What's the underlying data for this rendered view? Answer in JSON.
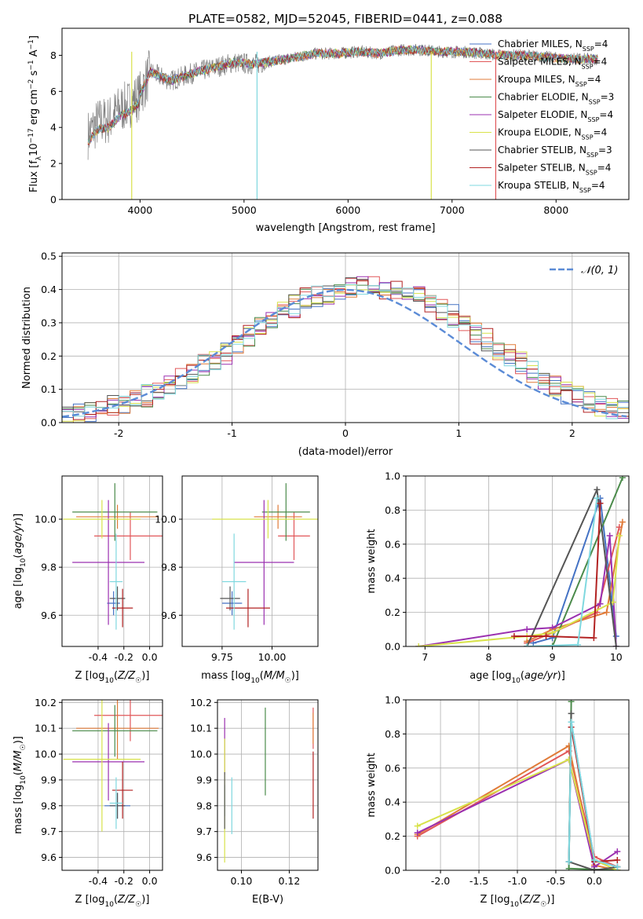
{
  "figure_title": "PLATE=0582, MJD=52045, FIBERID=0441, z=0.088",
  "colors": {
    "Chabrier MILES": "#4472c4",
    "Salpeter MILES": "#e15759",
    "Kroupa MILES": "#e07b39",
    "Chabrier ELODIE": "#4b8b4b",
    "Salpeter ELODIE": "#9b30b0",
    "Kroupa ELODIE": "#d8e24a",
    "Chabrier STELIB": "#555555",
    "Salpeter STELIB": "#b22222",
    "Kroupa STELIB": "#7fd8df"
  },
  "chart_data": [
    {
      "type": "line",
      "name": "spectrum",
      "xlabel": "wavelength [Angstrom, rest frame]",
      "ylabel": "Flux [f_λ 10^-17 erg cm^-2 s^-1 A^-1]",
      "xlim": [
        3250,
        8700
      ],
      "ylim": [
        0,
        9.5
      ],
      "xticks": [
        4000,
        5000,
        6000,
        7000,
        8000
      ],
      "yticks": [
        0,
        2,
        4,
        6,
        8
      ],
      "grid": false,
      "legend_position": "right",
      "data_continuum": {
        "x": [
          3500,
          3600,
          3700,
          3800,
          3900,
          4000,
          4100,
          4200,
          4300,
          4500,
          4700,
          4900,
          5100,
          5300,
          5500,
          5700,
          5900,
          6100,
          6300,
          6500,
          6700,
          6900,
          7100,
          7300,
          7500,
          7700,
          7900,
          8100,
          8300
        ],
        "y": [
          3.6,
          4.3,
          4.4,
          5.0,
          5.3,
          5.8,
          7.1,
          6.8,
          6.6,
          7.0,
          7.3,
          7.6,
          7.5,
          7.7,
          7.9,
          8.1,
          8.1,
          8.2,
          8.1,
          8.3,
          8.3,
          8.2,
          8.2,
          8.1,
          8.0,
          8.0,
          7.9,
          7.8,
          7.8
        ]
      },
      "series": [
        {
          "name": "Chabrier MILES, N_SSP=4",
          "label_text": "Chabrier MILES, N",
          "sub": "SSP",
          "suffix": "=4"
        },
        {
          "name": "Salpeter MILES, N_SSP=4",
          "label_text": "Salpeter MILES, N",
          "sub": "SSP",
          "suffix": "=4"
        },
        {
          "name": "Kroupa MILES, N_SSP=4",
          "label_text": "Kroupa MILES, N",
          "sub": "SSP",
          "suffix": "=4"
        },
        {
          "name": "Chabrier ELODIE, N_SSP=3",
          "label_text": "Chabrier ELODIE, N",
          "sub": "SSP",
          "suffix": "=3"
        },
        {
          "name": "Salpeter ELODIE, N_SSP=4",
          "label_text": "Salpeter ELODIE, N",
          "sub": "SSP",
          "suffix": "=4"
        },
        {
          "name": "Kroupa ELODIE, N_SSP=4",
          "label_text": "Kroupa ELODIE, N",
          "sub": "SSP",
          "suffix": "=4"
        },
        {
          "name": "Chabrier STELIB, N_SSP=3",
          "label_text": "Chabrier STELIB, N",
          "sub": "SSP",
          "suffix": "=3"
        },
        {
          "name": "Salpeter STELIB, N_SSP=4",
          "label_text": "Salpeter STELIB, N",
          "sub": "SSP",
          "suffix": "=4"
        },
        {
          "name": "Kroupa STELIB, N_SSP=4",
          "label_text": "Kroupa STELIB, N",
          "sub": "SSP",
          "suffix": "=4"
        }
      ]
    },
    {
      "type": "line",
      "name": "residual-histogram",
      "xlabel": "(data-model)/error",
      "ylabel": "Normed distribution",
      "xlim": [
        -2.5,
        2.5
      ],
      "ylim": [
        0,
        0.51
      ],
      "xticks": [
        -2,
        -1,
        0,
        1,
        2
      ],
      "yticks": [
        0.0,
        0.1,
        0.2,
        0.3,
        0.4,
        0.5
      ],
      "grid": true,
      "legend_position": "top-right",
      "legend": "𝒩(0, 1)",
      "bin_edges_start": -2.5,
      "bin_width": 0.1,
      "histogram_mean": [
        0.02,
        0.025,
        0.03,
        0.04,
        0.05,
        0.06,
        0.07,
        0.08,
        0.1,
        0.115,
        0.13,
        0.15,
        0.17,
        0.19,
        0.21,
        0.24,
        0.26,
        0.29,
        0.31,
        0.33,
        0.35,
        0.37,
        0.38,
        0.39,
        0.4,
        0.405,
        0.41,
        0.41,
        0.405,
        0.4,
        0.39,
        0.38,
        0.36,
        0.34,
        0.32,
        0.3,
        0.27,
        0.25,
        0.22,
        0.2,
        0.18,
        0.15,
        0.13,
        0.11,
        0.09,
        0.08,
        0.065,
        0.05,
        0.04,
        0.03
      ]
    },
    {
      "type": "scatter",
      "name": "age-vs-Z",
      "xlabel": "Z [log10(Z/Z☉)]",
      "ylabel": "age [log10(age/yr)]",
      "xlim": [
        -0.68,
        0.1
      ],
      "ylim": [
        9.47,
        10.18
      ],
      "xticks": [
        -0.4,
        -0.2,
        0.0
      ],
      "yticks": [
        9.6,
        9.8,
        10.0
      ],
      "points": [
        {
          "model": "Chabrier MILES",
          "x": -0.28,
          "xerr": 0.05,
          "y": 9.65,
          "yerr": 0.05
        },
        {
          "model": "Salpeter MILES",
          "x": -0.15,
          "xerr": 0.28,
          "y": 9.93,
          "yerr": 0.1
        },
        {
          "model": "Kroupa MILES",
          "x": -0.25,
          "xerr": 0.32,
          "y": 10.01,
          "yerr": 0.05
        },
        {
          "model": "Chabrier ELODIE",
          "x": -0.27,
          "xerr": 0.33,
          "y": 10.03,
          "yerr": 0.12
        },
        {
          "model": "Salpeter ELODIE",
          "x": -0.32,
          "xerr": 0.28,
          "y": 9.82,
          "yerr": 0.26
        },
        {
          "model": "Kroupa ELODIE",
          "x": -0.37,
          "xerr": 0.3,
          "y": 10.0,
          "yerr": 0.08
        },
        {
          "model": "Chabrier STELIB",
          "x": -0.25,
          "xerr": 0.06,
          "y": 9.67,
          "yerr": 0.05
        },
        {
          "model": "Salpeter STELIB",
          "x": -0.21,
          "xerr": 0.08,
          "y": 9.63,
          "yerr": 0.08
        },
        {
          "model": "Kroupa STELIB",
          "x": -0.26,
          "xerr": 0.05,
          "y": 9.74,
          "yerr": 0.2
        }
      ]
    },
    {
      "type": "scatter",
      "name": "age-vs-mass",
      "xlabel": "mass [log10(M/M☉)]",
      "ylabel": "",
      "xlim": [
        9.55,
        10.23
      ],
      "ylim": [
        9.47,
        10.18
      ],
      "xticks": [
        9.75,
        10.0
      ],
      "yticks": [
        9.6,
        9.8,
        10.0
      ],
      "points": [
        {
          "model": "Chabrier MILES",
          "x": 9.8,
          "xerr": 0.05,
          "y": 9.65,
          "yerr": 0.05
        },
        {
          "model": "Salpeter MILES",
          "x": 10.11,
          "xerr": 0.08,
          "y": 9.93,
          "yerr": 0.1
        },
        {
          "model": "Kroupa MILES",
          "x": 10.03,
          "xerr": 0.12,
          "y": 10.01,
          "yerr": 0.05
        },
        {
          "model": "Chabrier ELODIE",
          "x": 10.07,
          "xerr": 0.12,
          "y": 10.03,
          "yerr": 0.12
        },
        {
          "model": "Salpeter ELODIE",
          "x": 9.96,
          "xerr": 0.15,
          "y": 9.82,
          "yerr": 0.26
        },
        {
          "model": "Kroupa ELODIE",
          "x": 9.98,
          "xerr": 0.28,
          "y": 10.0,
          "yerr": 0.08
        },
        {
          "model": "Chabrier STELIB",
          "x": 9.79,
          "xerr": 0.05,
          "y": 9.67,
          "yerr": 0.05
        },
        {
          "model": "Salpeter STELIB",
          "x": 9.88,
          "xerr": 0.11,
          "y": 9.63,
          "yerr": 0.08
        },
        {
          "model": "Kroupa STELIB",
          "x": 9.81,
          "xerr": 0.06,
          "y": 9.74,
          "yerr": 0.2
        }
      ]
    },
    {
      "type": "line",
      "name": "mass-weight-vs-age",
      "xlabel": "age [log10(age/yr)]",
      "ylabel": "mass weight",
      "xlim": [
        6.7,
        10.2
      ],
      "ylim": [
        0,
        1.0
      ],
      "xticks": [
        7,
        8,
        9,
        10
      ],
      "yticks": [
        0.0,
        0.2,
        0.4,
        0.6,
        0.8,
        1.0
      ],
      "series": [
        {
          "model": "Chabrier MILES",
          "x": [
            8.7,
            9.0,
            9.75,
            10.0
          ],
          "y": [
            0.02,
            0.05,
            0.87,
            0.06
          ]
        },
        {
          "model": "Salpeter MILES",
          "x": [
            8.6,
            9.0,
            9.7,
            10.05
          ],
          "y": [
            0.02,
            0.08,
            0.2,
            0.7
          ]
        },
        {
          "model": "Kroupa MILES",
          "x": [
            8.6,
            9.0,
            9.85,
            10.1
          ],
          "y": [
            0.03,
            0.1,
            0.2,
            0.73
          ]
        },
        {
          "model": "Chabrier ELODIE",
          "x": [
            8.6,
            9.0,
            10.1
          ],
          "y": [
            0.0,
            0.0,
            0.99
          ]
        },
        {
          "model": "Salpeter ELODIE",
          "x": [
            6.9,
            8.6,
            9.0,
            9.75,
            9.9,
            10.0
          ],
          "y": [
            0.0,
            0.1,
            0.11,
            0.25,
            0.65,
            0.0
          ]
        },
        {
          "model": "Kroupa ELODIE",
          "x": [
            6.9,
            8.6,
            9.0,
            9.95,
            10.05
          ],
          "y": [
            0.0,
            0.06,
            0.08,
            0.26,
            0.65
          ]
        },
        {
          "model": "Chabrier STELIB",
          "x": [
            8.6,
            9.7,
            10.0
          ],
          "y": [
            0.0,
            0.92,
            0.0
          ]
        },
        {
          "model": "Salpeter STELIB",
          "x": [
            8.4,
            8.9,
            9.65,
            9.75
          ],
          "y": [
            0.06,
            0.06,
            0.05,
            0.84
          ]
        },
        {
          "model": "Kroupa STELIB",
          "x": [
            8.6,
            9.4,
            9.7
          ],
          "y": [
            0.0,
            0.01,
            0.87
          ]
        }
      ]
    },
    {
      "type": "scatter",
      "name": "mass-vs-Z",
      "xlabel": "Z [log10(Z/Z☉)]",
      "ylabel": "mass [log10(M/M☉)]",
      "xlim": [
        -0.68,
        0.1
      ],
      "ylim": [
        9.55,
        10.21
      ],
      "xticks": [
        -0.4,
        -0.2,
        0.0
      ],
      "yticks": [
        9.6,
        9.7,
        9.8,
        9.9,
        10.0,
        10.1,
        10.2
      ],
      "points": [
        {
          "model": "Chabrier MILES",
          "x": -0.25,
          "xerr": 0.1,
          "y": 9.8,
          "yerr": 0.05
        },
        {
          "model": "Salpeter MILES",
          "x": -0.15,
          "xerr": 0.28,
          "y": 10.15,
          "yerr": 0.1
        },
        {
          "model": "Kroupa MILES",
          "x": -0.25,
          "xerr": 0.32,
          "y": 10.1,
          "yerr": 0.12
        },
        {
          "model": "Chabrier ELODIE",
          "x": -0.27,
          "xerr": 0.33,
          "y": 10.09,
          "yerr": 0.1
        },
        {
          "model": "Salpeter ELODIE",
          "x": -0.32,
          "xerr": 0.28,
          "y": 9.97,
          "yerr": 0.15
        },
        {
          "model": "Kroupa ELODIE",
          "x": -0.37,
          "xerr": 0.3,
          "y": 9.98,
          "yerr": 0.28
        },
        {
          "model": "Chabrier STELIB",
          "x": -0.25,
          "xerr": 0.06,
          "y": 9.8,
          "yerr": 0.05
        },
        {
          "model": "Salpeter STELIB",
          "x": -0.21,
          "xerr": 0.08,
          "y": 9.86,
          "yerr": 0.11
        },
        {
          "model": "Kroupa STELIB",
          "x": -0.26,
          "xerr": 0.05,
          "y": 9.81,
          "yerr": 0.1
        }
      ]
    },
    {
      "type": "scatter",
      "name": "mass-vs-EBV",
      "xlabel": "E(B-V)",
      "ylabel": "",
      "xlim": [
        0.09,
        0.132
      ],
      "ylim": [
        9.55,
        10.21
      ],
      "xticks": [
        0.1,
        0.12
      ],
      "yticks": [
        9.6,
        9.7,
        9.8,
        9.9,
        10.0,
        10.1,
        10.2
      ],
      "points": [
        {
          "model": "Chabrier MILES",
          "x": 0.093,
          "y": 9.82,
          "yerr": 0.06
        },
        {
          "model": "Salpeter MILES",
          "x": 0.13,
          "y": 10.1,
          "yerr": 0.08
        },
        {
          "model": "Kroupa MILES",
          "x": 0.13,
          "y": 10.1,
          "yerr": 0.06
        },
        {
          "model": "Chabrier ELODIE",
          "x": 0.11,
          "y": 10.01,
          "yerr": 0.17
        },
        {
          "model": "Salpeter ELODIE",
          "x": 0.093,
          "y": 10.03,
          "yerr": 0.11
        },
        {
          "model": "Kroupa ELODIE",
          "x": 0.093,
          "y": 9.82,
          "yerr": 0.24
        },
        {
          "model": "Chabrier STELIB",
          "x": 0.093,
          "y": 9.82,
          "yerr": 0.11
        },
        {
          "model": "Salpeter STELIB",
          "x": 0.13,
          "y": 9.88,
          "yerr": 0.13
        },
        {
          "model": "Kroupa STELIB",
          "x": 0.096,
          "y": 9.8,
          "yerr": 0.11
        }
      ]
    },
    {
      "type": "line",
      "name": "mass-weight-vs-Z",
      "xlabel": "Z [log10(Z/Z☉)]",
      "ylabel": "mass weight",
      "xlim": [
        -2.45,
        0.45
      ],
      "ylim": [
        0,
        1.0
      ],
      "xticks": [
        -2.0,
        -1.5,
        -1.0,
        -0.5,
        0.0
      ],
      "yticks": [
        0.0,
        0.2,
        0.4,
        0.6,
        0.8,
        1.0
      ],
      "series": [
        {
          "model": "Chabrier MILES",
          "x": [
            -0.33,
            -0.3,
            0.0,
            0.3
          ],
          "y": [
            0.05,
            0.87,
            0.06,
            0.02
          ]
        },
        {
          "model": "Salpeter MILES",
          "x": [
            -2.3,
            -0.33,
            0.0,
            0.3
          ],
          "y": [
            0.2,
            0.7,
            0.08,
            0.02
          ]
        },
        {
          "model": "Kroupa MILES",
          "x": [
            -2.3,
            -0.33,
            0.0,
            0.3
          ],
          "y": [
            0.21,
            0.73,
            0.03,
            0.0
          ]
        },
        {
          "model": "Chabrier ELODIE",
          "x": [
            -0.3,
            -0.33,
            0.3
          ],
          "y": [
            0.99,
            0.01,
            0.0
          ]
        },
        {
          "model": "Salpeter ELODIE",
          "x": [
            -2.3,
            -0.33,
            0.0,
            0.3
          ],
          "y": [
            0.22,
            0.65,
            0.02,
            0.11
          ]
        },
        {
          "model": "Kroupa ELODIE",
          "x": [
            -2.3,
            -0.33,
            0.0,
            0.3
          ],
          "y": [
            0.26,
            0.65,
            0.06,
            0.0
          ]
        },
        {
          "model": "Chabrier STELIB",
          "x": [
            -0.3,
            -0.33,
            0.0,
            0.3
          ],
          "y": [
            0.92,
            0.05,
            0.0,
            0.02
          ]
        },
        {
          "model": "Salpeter STELIB",
          "x": [
            -0.3,
            0.0,
            0.3
          ],
          "y": [
            0.84,
            0.05,
            0.06
          ]
        },
        {
          "model": "Kroupa STELIB",
          "x": [
            -0.33,
            -0.3,
            0.0,
            0.3
          ],
          "y": [
            0.05,
            0.87,
            0.06,
            0.02
          ]
        }
      ]
    }
  ]
}
